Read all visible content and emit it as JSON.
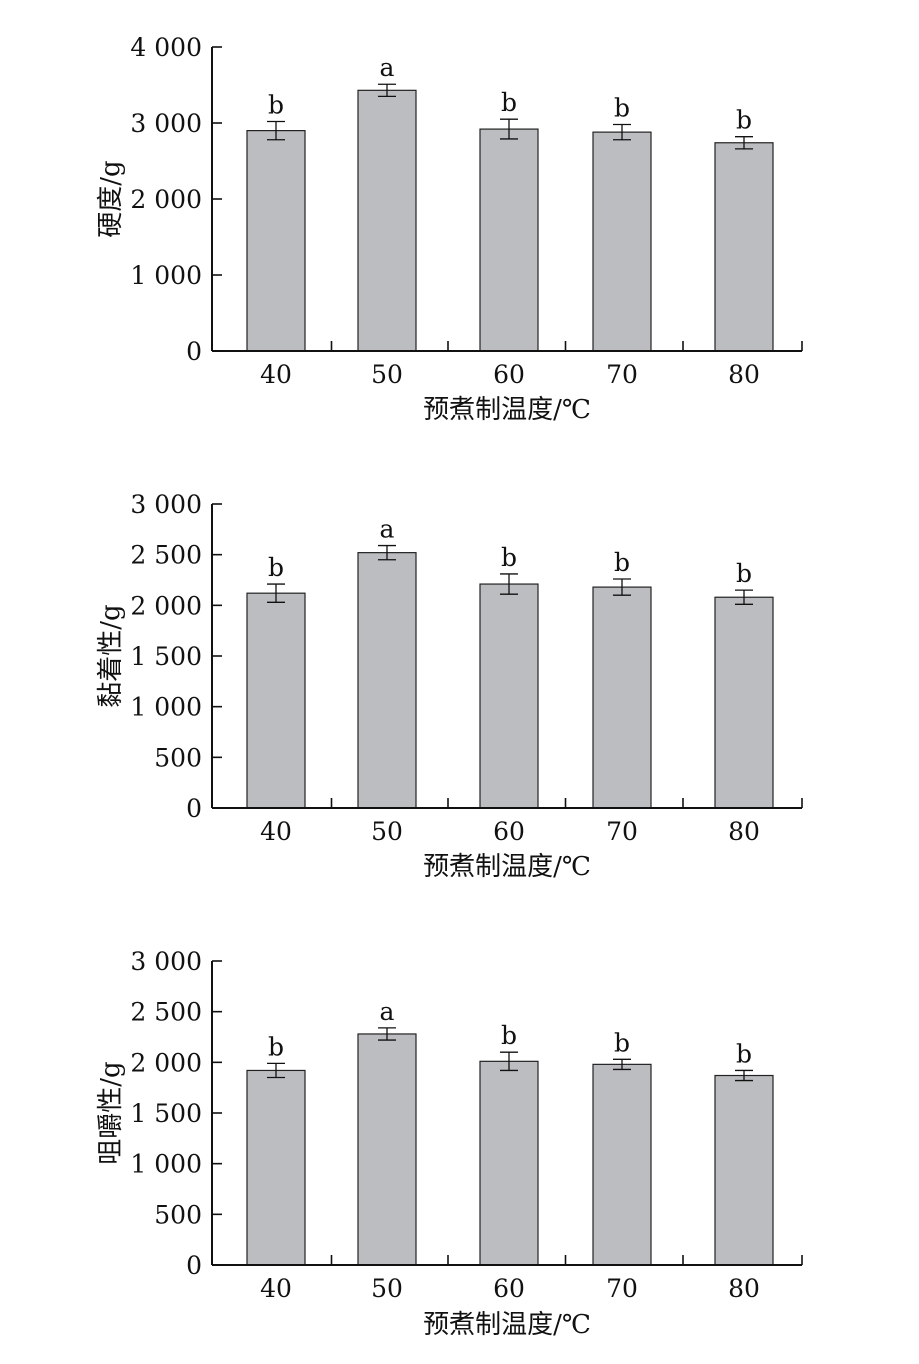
{
  "chart_data": [
    {
      "type": "bar",
      "categories": [
        "40",
        "50",
        "60",
        "70",
        "80"
      ],
      "values": [
        2900,
        3430,
        2920,
        2880,
        2740
      ],
      "errors": [
        120,
        80,
        130,
        100,
        80
      ],
      "significance_letters": [
        "b",
        "a",
        "b",
        "b",
        "b"
      ],
      "xlabel": "预煮制温度/℃",
      "ylabel": "硬度/g",
      "ylim": [
        0,
        4000
      ],
      "yticks": [
        0,
        1000,
        2000,
        3000,
        4000
      ],
      "ytick_labels": [
        "0",
        "1 000",
        "2 000",
        "3 000",
        "4 000"
      ],
      "bar_color": "#bcbdc0",
      "grid": false
    },
    {
      "type": "bar",
      "categories": [
        "40",
        "50",
        "60",
        "70",
        "80"
      ],
      "values": [
        2120,
        2520,
        2210,
        2180,
        2080
      ],
      "errors": [
        90,
        70,
        100,
        80,
        70
      ],
      "significance_letters": [
        "b",
        "a",
        "b",
        "b",
        "b"
      ],
      "xlabel": "预煮制温度/℃",
      "ylabel": "黏着性/g",
      "ylim": [
        0,
        3000
      ],
      "yticks": [
        0,
        500,
        1000,
        1500,
        2000,
        2500,
        3000
      ],
      "ytick_labels": [
        "0",
        "500",
        "1 000",
        "1 500",
        "2 000",
        "2 500",
        "3 000"
      ],
      "bar_color": "#bcbdc0",
      "grid": false
    },
    {
      "type": "bar",
      "categories": [
        "40",
        "50",
        "60",
        "70",
        "80"
      ],
      "values": [
        1920,
        2280,
        2010,
        1980,
        1870
      ],
      "errors": [
        70,
        60,
        90,
        50,
        50
      ],
      "significance_letters": [
        "b",
        "a",
        "b",
        "b",
        "b"
      ],
      "xlabel": "预煮制温度/℃",
      "ylabel": "咀嚼性/g",
      "ylim": [
        0,
        3000
      ],
      "yticks": [
        0,
        500,
        1000,
        1500,
        2000,
        2500,
        3000
      ],
      "ytick_labels": [
        "0",
        "500",
        "1 000",
        "1 500",
        "2 000",
        "2 500",
        "3 000"
      ],
      "bar_color": "#bcbdc0",
      "grid": false
    }
  ]
}
